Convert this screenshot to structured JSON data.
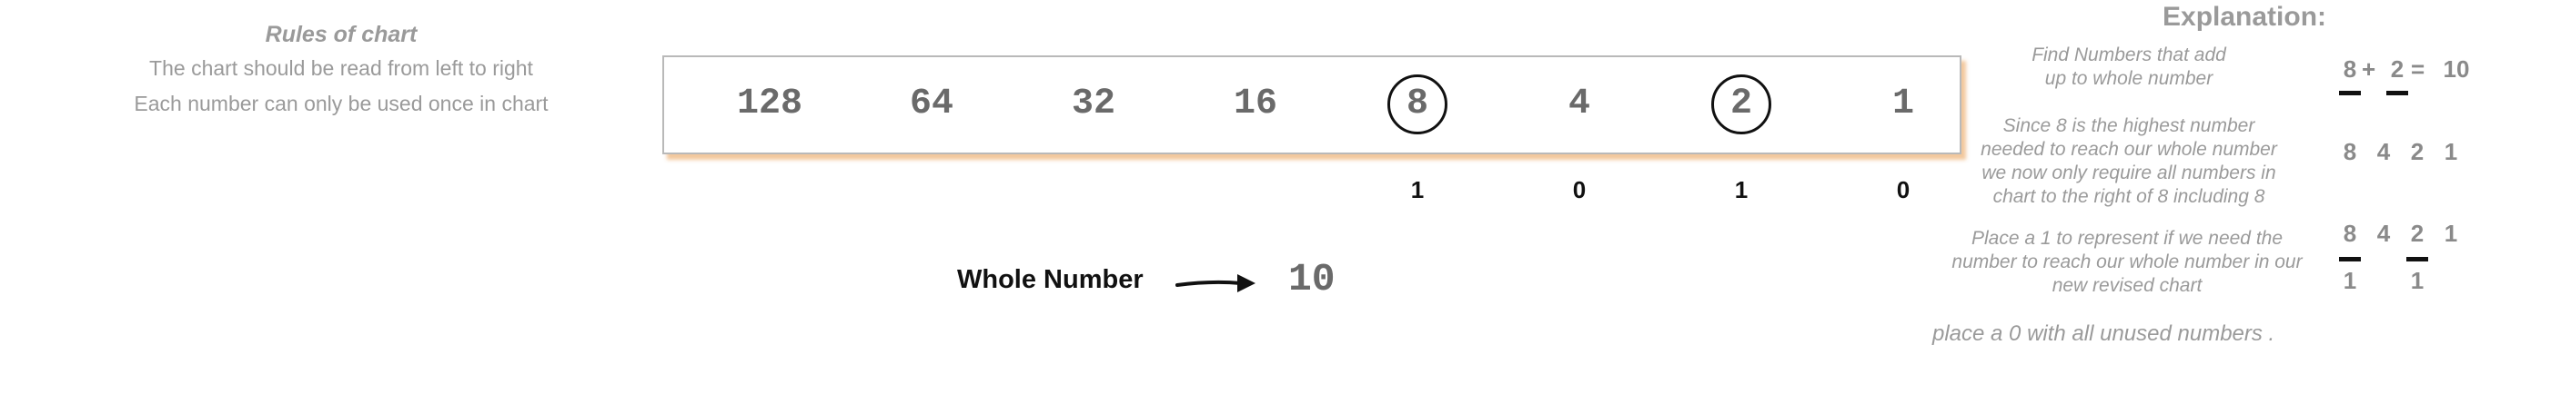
{
  "rules": {
    "title": "Rules of chart",
    "lines": [
      "The chart should be read from left to right",
      "Each number can only be used once in chart"
    ]
  },
  "chart": {
    "numbers": [
      "128",
      "64",
      "32",
      "16",
      "8",
      "4",
      "2",
      "1"
    ],
    "circled": [
      "8",
      "2"
    ],
    "bits": [
      "1",
      "0",
      "1",
      "0"
    ]
  },
  "whole_number": {
    "label": "Whole Number",
    "value": "10"
  },
  "explanation": {
    "title": "Explanation:",
    "step1": {
      "line1": "Find Numbers that add",
      "line2": "up to whole number"
    },
    "equation": {
      "a": "8",
      "plus": "+",
      "b": "2",
      "eq": "=",
      "result": "10"
    },
    "step2": {
      "line1": "Since 8 is the highest number",
      "line2": "needed to reach our whole number",
      "line3": "we now only require all numbers in",
      "line4": "chart to the right of 8 including 8"
    },
    "revised_chart": [
      "8",
      "4",
      "2",
      "1"
    ],
    "step3": {
      "line1": "Place a 1 to represent if we need the",
      "line2": "number to reach our whole number in our",
      "line3": "new revised chart"
    },
    "revised_bits": {
      "top": [
        "8",
        "4",
        "2",
        "1"
      ],
      "ones": [
        "1",
        "1"
      ]
    },
    "step4": "place a 0 with all unused numbers ."
  },
  "colors": {
    "muted_text": "#9a9a9a",
    "chart_digits": "#6a6a6a",
    "box_shadow": "#f0be8c",
    "ink": "#111111"
  },
  "icons": [
    "right-arrow-icon"
  ]
}
